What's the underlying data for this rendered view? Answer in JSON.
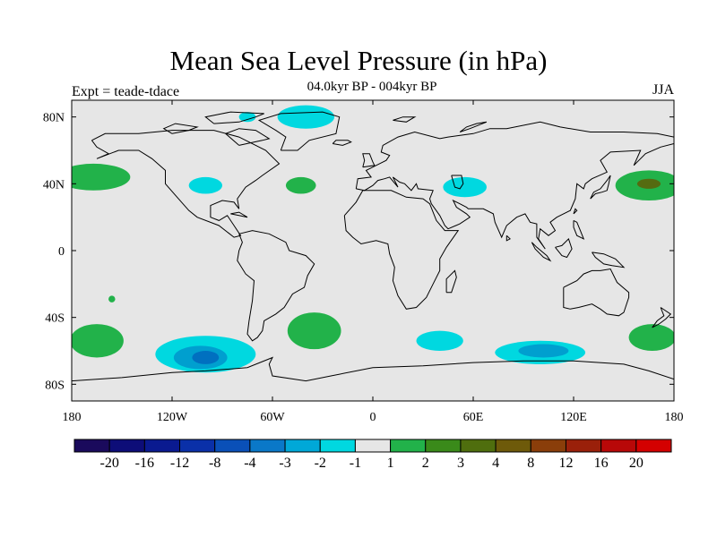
{
  "title": "Mean Sea Level Pressure (in hPa)",
  "subtitle": "04.0kyr BP - 004kyr BP",
  "experiment": "Expt = teade-tdace",
  "season": "JJA",
  "map": {
    "projection": "cylindrical-equidistant",
    "lon_range": [
      -180,
      180
    ],
    "lat_range": [
      -90,
      90
    ],
    "background_color": "#e6e6e6",
    "coastline_color": "#000000",
    "lon_ticks": [
      {
        "value": -180,
        "label": "180"
      },
      {
        "value": -120,
        "label": "120W"
      },
      {
        "value": -60,
        "label": "60W"
      },
      {
        "value": 0,
        "label": "0"
      },
      {
        "value": 60,
        "label": "60E"
      },
      {
        "value": 120,
        "label": "120E"
      },
      {
        "value": 180,
        "label": "180"
      }
    ],
    "lat_ticks": [
      {
        "value": 80,
        "label": "80N"
      },
      {
        "value": 40,
        "label": "40N"
      },
      {
        "value": 0,
        "label": "0"
      },
      {
        "value": -40,
        "label": "40S"
      },
      {
        "value": -80,
        "label": "80S"
      }
    ],
    "anomaly_regions": [
      {
        "lon": -167,
        "lat": 44,
        "rlon": 22,
        "rlat": 8,
        "color": "#22b24a",
        "level": "1 to 2"
      },
      {
        "lon": -100,
        "lat": 39,
        "rlon": 10,
        "rlat": 5,
        "color": "#00d8e0",
        "level": "-2 to -1"
      },
      {
        "lon": -43,
        "lat": 39,
        "rlon": 9,
        "rlat": 5,
        "color": "#22b24a",
        "level": "1 to 2"
      },
      {
        "lon": -40,
        "lat": 80,
        "rlon": 17,
        "rlat": 7,
        "color": "#00d8e0",
        "level": "-2 to -1"
      },
      {
        "lon": -75,
        "lat": 80,
        "rlon": 5,
        "rlat": 3,
        "color": "#00d8e0",
        "level": "-2 to -1"
      },
      {
        "lon": 55,
        "lat": 38,
        "rlon": 13,
        "rlat": 6,
        "color": "#00d8e0",
        "level": "-2 to -1"
      },
      {
        "lon": 165,
        "lat": 39,
        "rlon": 20,
        "rlat": 9,
        "color": "#22b24a",
        "level": "1 to 2"
      },
      {
        "lon": 165,
        "lat": 40,
        "rlon": 7,
        "rlat": 3,
        "color": "#556b10",
        "level": "4 to 8"
      },
      {
        "lon": 167,
        "lat": -52,
        "rlon": 14,
        "rlat": 8,
        "color": "#22b24a",
        "level": "1 to 2"
      },
      {
        "lon": -165,
        "lat": -54,
        "rlon": 16,
        "rlat": 10,
        "color": "#22b24a",
        "level": "1 to 2"
      },
      {
        "lon": -35,
        "lat": -48,
        "rlon": 16,
        "rlat": 11,
        "color": "#22b24a",
        "level": "1 to 2"
      },
      {
        "lon": -100,
        "lat": -62,
        "rlon": 30,
        "rlat": 11,
        "color": "#00d8e0",
        "level": "-2 to -1"
      },
      {
        "lon": -103,
        "lat": -64,
        "rlon": 16,
        "rlat": 7,
        "color": "#009fcf",
        "level": "-3 to -2"
      },
      {
        "lon": -100,
        "lat": -64,
        "rlon": 8,
        "rlat": 4,
        "color": "#0070c0",
        "level": "-4 to -3"
      },
      {
        "lon": 40,
        "lat": -54,
        "rlon": 14,
        "rlat": 6,
        "color": "#00d8e0",
        "level": "-2 to -1"
      },
      {
        "lon": 100,
        "lat": -61,
        "rlon": 27,
        "rlat": 7,
        "color": "#00d8e0",
        "level": "-2 to -1"
      },
      {
        "lon": 102,
        "lat": -60,
        "rlon": 15,
        "rlat": 4,
        "color": "#009fcf",
        "level": "-3 to -2"
      },
      {
        "lon": -156,
        "lat": -29,
        "rlon": 2,
        "rlat": 2,
        "color": "#22b24a",
        "level": "1 to 2"
      }
    ]
  },
  "colorbar": {
    "colors": [
      "#1a0a5c",
      "#0d0d78",
      "#0a1a90",
      "#0a30a8",
      "#0a50b8",
      "#0a78c8",
      "#00a8d8",
      "#00d8e0",
      "#e6e6e6",
      "#22b24a",
      "#3a8a1a",
      "#4f6e0e",
      "#6e5a0a",
      "#8a3e0a",
      "#9a200a",
      "#b80808",
      "#d40000"
    ],
    "labels": [
      "-20",
      "-16",
      "-12",
      "-8",
      "-4",
      "-3",
      "-2",
      "-1",
      "1",
      "2",
      "3",
      "4",
      "8",
      "12",
      "16",
      "20"
    ]
  }
}
